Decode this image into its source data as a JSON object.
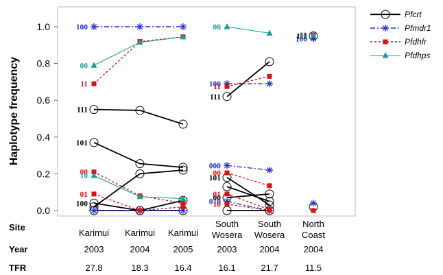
{
  "chart_data": {
    "type": "line",
    "ylabel": "Haplotype frequency",
    "ylim": [
      0,
      1
    ],
    "yticks": [
      "0.0",
      "0.2",
      "0.4",
      "0.6",
      "0.8",
      "1.0"
    ],
    "table": {
      "headers": [
        "Site",
        "Year",
        "TFR"
      ],
      "columns": [
        {
          "site": [
            "Karimui"
          ],
          "year": "2003",
          "tfr": "27.8"
        },
        {
          "site": [
            "Karimui"
          ],
          "year": "2004",
          "tfr": "18.3"
        },
        {
          "site": [
            "Karimui"
          ],
          "year": "2005",
          "tfr": "16.4"
        },
        {
          "site": [
            "South",
            "Wosera"
          ],
          "year": "2003",
          "tfr": "16.1"
        },
        {
          "site": [
            "South",
            "Wosera"
          ],
          "year": "2004",
          "tfr": "21.7"
        },
        {
          "site": [
            "North",
            "Coast"
          ],
          "year": "2004",
          "tfr": "11.5"
        }
      ]
    },
    "legend": [
      {
        "name": "Pfcrt",
        "color": "#000000",
        "marker": "circle"
      },
      {
        "name": "Pfmdr1",
        "color": "#1f2fd6",
        "marker": "star"
      },
      {
        "name": "Pfdhfr",
        "color": "#e01010",
        "marker": "square"
      },
      {
        "name": "Pfdhps",
        "color": "#1a9e9a",
        "marker": "triangle"
      }
    ],
    "legend_position": "top-right",
    "series": [
      {
        "gene": "Pfcrt",
        "haplotype": "111",
        "x": [
          0,
          1,
          2
        ],
        "y": [
          0.55,
          0.545,
          0.47
        ],
        "label_at": 0
      },
      {
        "gene": "Pfcrt",
        "haplotype": "101",
        "x": [
          0,
          1,
          2
        ],
        "y": [
          0.37,
          0.255,
          0.235
        ],
        "label_at": 0
      },
      {
        "gene": "Pfcrt",
        "haplotype": "100",
        "x": [
          0,
          1,
          2
        ],
        "y": [
          0.04,
          0.0,
          0.0
        ],
        "label_at": 0
      },
      {
        "gene": "Pfcrt",
        "haplotype": "",
        "x": [
          0,
          1,
          2
        ],
        "y": [
          0.02,
          0.2,
          0.22
        ]
      },
      {
        "gene": "Pfcrt",
        "haplotype": "",
        "x": [
          0,
          1,
          2
        ],
        "y": [
          0.0,
          0.0,
          0.055
        ]
      },
      {
        "gene": "Pfcrt",
        "haplotype": "111",
        "x": [
          3,
          4
        ],
        "y": [
          0.62,
          0.81
        ],
        "label_at": 0
      },
      {
        "gene": "Pfcrt",
        "haplotype": "101",
        "x": [
          3,
          4
        ],
        "y": [
          0.18,
          0.03
        ],
        "label_at": 0
      },
      {
        "gene": "Pfcrt",
        "haplotype": "",
        "x": [
          3,
          4
        ],
        "y": [
          0.13,
          0.05
        ]
      },
      {
        "gene": "Pfcrt",
        "haplotype": "00",
        "x": [
          3,
          4
        ],
        "y": [
          0.07,
          0.09
        ],
        "label_at": 0
      },
      {
        "gene": "Pfcrt",
        "haplotype": "",
        "x": [
          3,
          4
        ],
        "y": [
          0.0,
          0.0
        ]
      },
      {
        "gene": "Pfcrt",
        "haplotype": "111",
        "x": [
          5
        ],
        "y": [
          0.95
        ],
        "label_at": 0
      },
      {
        "gene": "Pfcrt",
        "haplotype": "",
        "x": [
          5
        ],
        "y": [
          0.02
        ]
      },
      {
        "gene": "Pfmdr1",
        "haplotype": "100",
        "x": [
          0,
          1,
          2
        ],
        "y": [
          1.0,
          1.0,
          1.0
        ],
        "label_at": 0
      },
      {
        "gene": "Pfmdr1",
        "haplotype": "",
        "x": [
          0,
          1,
          2
        ],
        "y": [
          0.0,
          0.0,
          0.0
        ]
      },
      {
        "gene": "Pfmdr1",
        "haplotype": "100",
        "x": [
          3,
          4
        ],
        "y": [
          0.69,
          0.69
        ],
        "label_at": 0
      },
      {
        "gene": "Pfmdr1",
        "haplotype": "000",
        "x": [
          3,
          4
        ],
        "y": [
          0.245,
          0.22
        ],
        "label_at": 0
      },
      {
        "gene": "Pfmdr1",
        "haplotype": "010",
        "x": [
          3,
          4
        ],
        "y": [
          0.05,
          0.0
        ],
        "label_at": 0
      },
      {
        "gene": "Pfmdr1",
        "haplotype": "100",
        "x": [
          5
        ],
        "y": [
          0.935
        ],
        "label_at": 0
      },
      {
        "gene": "Pfmdr1",
        "haplotype": "",
        "x": [
          5
        ],
        "y": [
          0.04
        ]
      },
      {
        "gene": "Pfdhfr",
        "haplotype": "11",
        "x": [
          0,
          1,
          2
        ],
        "y": [
          0.69,
          0.92,
          0.945
        ],
        "label_at": 0
      },
      {
        "gene": "Pfdhfr",
        "haplotype": "00",
        "x": [
          0,
          1,
          2
        ],
        "y": [
          0.21,
          0.08,
          0.04
        ],
        "label_at": 0
      },
      {
        "gene": "Pfdhfr",
        "haplotype": "01",
        "x": [
          0,
          1,
          2
        ],
        "y": [
          0.09,
          0.0,
          0.02
        ],
        "label_at": 0
      },
      {
        "gene": "Pfdhfr",
        "haplotype": "11",
        "x": [
          3,
          4
        ],
        "y": [
          0.675,
          0.73
        ],
        "label_at": 0
      },
      {
        "gene": "Pfdhfr",
        "haplotype": "00",
        "x": [
          3,
          4
        ],
        "y": [
          0.205,
          0.135
        ],
        "label_at": 0
      },
      {
        "gene": "Pfdhfr",
        "haplotype": "01",
        "x": [
          3,
          4
        ],
        "y": [
          0.09,
          0.005
        ],
        "label_at": 0
      },
      {
        "gene": "Pfdhfr",
        "haplotype": "10",
        "x": [
          3,
          4
        ],
        "y": [
          0.035,
          0.0
        ],
        "label_at": 0
      },
      {
        "gene": "Pfdhfr",
        "haplotype": "11",
        "x": [
          5
        ],
        "y": [
          0.955
        ],
        "label_at": 0
      },
      {
        "gene": "Pfdhfr",
        "haplotype": "",
        "x": [
          5
        ],
        "y": [
          0.0
        ]
      },
      {
        "gene": "Pfdhps",
        "haplotype": "00",
        "x": [
          0,
          1,
          2
        ],
        "y": [
          0.79,
          0.915,
          0.945
        ],
        "label_at": 0
      },
      {
        "gene": "Pfdhps",
        "haplotype": "10",
        "x": [
          0,
          1,
          2
        ],
        "y": [
          0.19,
          0.075,
          0.065
        ],
        "label_at": 0
      },
      {
        "gene": "Pfdhps",
        "haplotype": "00",
        "x": [
          3,
          4
        ],
        "y": [
          1.0,
          0.965
        ],
        "label_at": 0
      },
      {
        "gene": "Pfdhps",
        "haplotype": "00",
        "x": [
          5
        ],
        "y": [
          0.955
        ],
        "label_at": 0
      }
    ]
  }
}
